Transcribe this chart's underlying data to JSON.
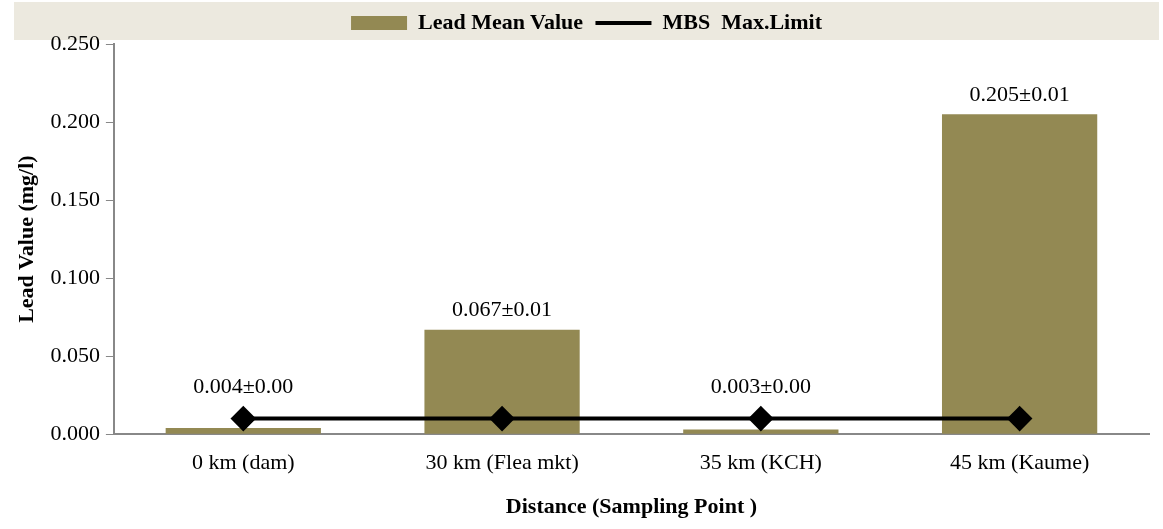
{
  "chart_data": {
    "type": "bar",
    "xlabel": "Distance (Sampling Point )",
    "ylabel": "Lead Value (mg/l)",
    "categories": [
      "0 km (dam)",
      "30 km (Flea mkt)",
      "35 km (KCH)",
      "45 km (Kaume)"
    ],
    "series": [
      {
        "name": "Lead Mean Value",
        "color": "#938953",
        "values": [
          0.004,
          0.067,
          0.003,
          0.205
        ],
        "value_labels": [
          "0.004±0.00",
          "0.067±0.01",
          "0.003±0.00",
          "0.205±0.01"
        ]
      },
      {
        "name": "MBS  Max.Limit",
        "type": "line",
        "color": "#000000",
        "values": [
          0.01,
          0.01,
          0.01,
          0.01
        ]
      }
    ],
    "ylim": [
      0,
      0.25
    ],
    "yticks": [
      {
        "value": 0,
        "label": "0.000"
      },
      {
        "value": 0.05,
        "label": "0.050"
      },
      {
        "value": 0.1,
        "label": "0.100"
      },
      {
        "value": 0.15,
        "label": "0.150"
      },
      {
        "value": 0.2,
        "label": "0.200"
      },
      {
        "value": 0.25,
        "label": "0.250"
      }
    ],
    "grid": false,
    "legend": "top",
    "marker": "diamond",
    "line_style": "solid"
  }
}
